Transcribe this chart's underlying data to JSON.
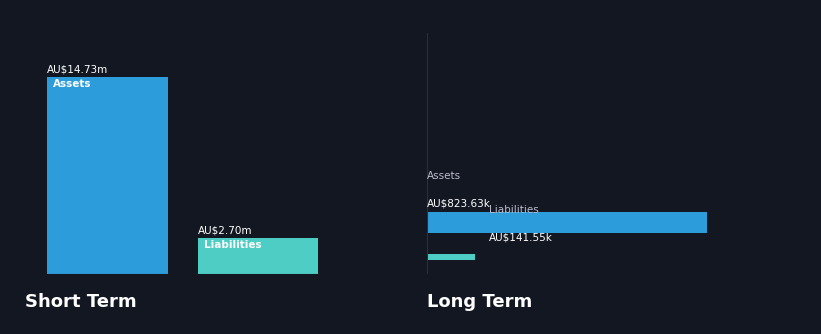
{
  "background_color": "#131722",
  "short_term": {
    "assets_value": 14.73,
    "assets_label": "AU$14.73m",
    "assets_color": "#2d9cdb",
    "liabilities_value": 2.7,
    "liabilities_label": "AU$2.70m",
    "liabilities_color": "#4ecdc4",
    "assets_bar_label": "Assets",
    "liabilities_bar_label": "Liabilities"
  },
  "long_term": {
    "assets_value": 823.63,
    "assets_label": "AU$823.63k",
    "assets_color": "#2d9cdb",
    "liabilities_value": 141.55,
    "liabilities_label": "AU$141.55k",
    "liabilities_color": "#4ecdc4",
    "assets_bar_label": "Assets",
    "liabilities_bar_label": "Liabilities"
  },
  "section_labels": [
    "Short Term",
    "Long Term"
  ],
  "text_color": "#ffffff",
  "label_color": "#bbbbcc",
  "figsize": [
    8.21,
    3.34
  ],
  "dpi": 100
}
